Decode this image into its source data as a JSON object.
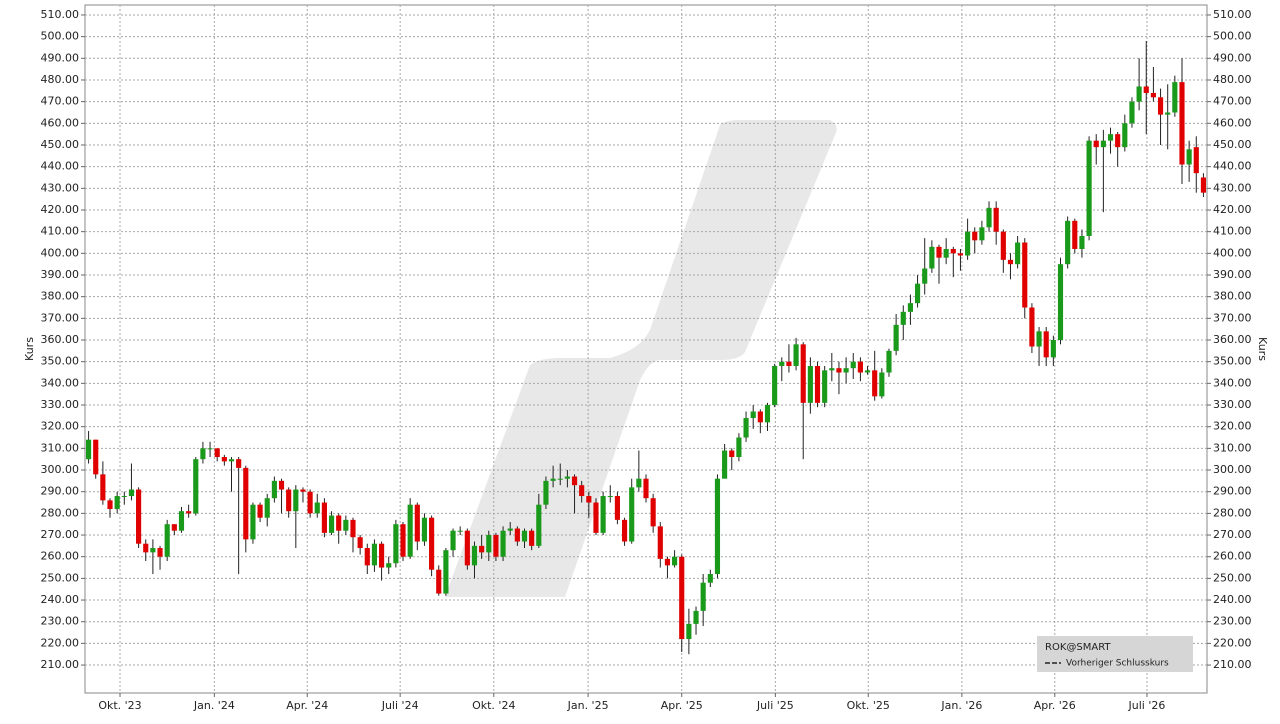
{
  "chart_data": {
    "type": "candlestick",
    "y_label": "Kurs",
    "legend": {
      "symbol": "ROK@SMART",
      "previous_close": "Vorheriger Schlusskurs",
      "corner": "lower-right"
    },
    "up_color": "#1a9a1a",
    "down_color": "#e00000",
    "grid": true,
    "xlim": [
      -0.5,
      156.5
    ],
    "xticks": [
      {
        "value": 4.4,
        "label": "Okt. '23"
      },
      {
        "value": 17.6,
        "label": "Jan. '24"
      },
      {
        "value": 30.6,
        "label": "Apr. '24"
      },
      {
        "value": 43.6,
        "label": "Juli '24"
      },
      {
        "value": 56.7,
        "label": "Okt. '24"
      },
      {
        "value": 69.9,
        "label": "Jan. '25"
      },
      {
        "value": 83.0,
        "label": "Apr. '25"
      },
      {
        "value": 96.1,
        "label": "Juli '25"
      },
      {
        "value": 109.1,
        "label": "Okt. '25"
      },
      {
        "value": 122.2,
        "label": "Jan. '26"
      },
      {
        "value": 135.2,
        "label": "Apr. '26"
      },
      {
        "value": 148.1,
        "label": "Juli '26"
      }
    ],
    "ylim": [
      197.1,
      514.6
    ],
    "yticks": [
      {
        "value": 210,
        "label": "210.00"
      },
      {
        "value": 220,
        "label": "220.00"
      },
      {
        "value": 230,
        "label": "230.00"
      },
      {
        "value": 240,
        "label": "240.00"
      },
      {
        "value": 250,
        "label": "250.00"
      },
      {
        "value": 260,
        "label": "260.00"
      },
      {
        "value": 270,
        "label": "270.00"
      },
      {
        "value": 280,
        "label": "280.00"
      },
      {
        "value": 290,
        "label": "290.00"
      },
      {
        "value": 300,
        "label": "300.00"
      },
      {
        "value": 310,
        "label": "310.00"
      },
      {
        "value": 320,
        "label": "320.00"
      },
      {
        "value": 330,
        "label": "330.00"
      },
      {
        "value": 340,
        "label": "340.00"
      },
      {
        "value": 350,
        "label": "350.00"
      },
      {
        "value": 360,
        "label": "360.00"
      },
      {
        "value": 370,
        "label": "370.00"
      },
      {
        "value": 380,
        "label": "380.00"
      },
      {
        "value": 390,
        "label": "390.00"
      },
      {
        "value": 400,
        "label": "400.00"
      },
      {
        "value": 410,
        "label": "410.00"
      },
      {
        "value": 420,
        "label": "420.00"
      },
      {
        "value": 430,
        "label": "430.00"
      },
      {
        "value": 440,
        "label": "440.00"
      },
      {
        "value": 450,
        "label": "450.00"
      },
      {
        "value": 460,
        "label": "460.00"
      },
      {
        "value": 470,
        "label": "470.00"
      },
      {
        "value": 480,
        "label": "480.00"
      },
      {
        "value": 490,
        "label": "490.00"
      },
      {
        "value": 500,
        "label": "500.00"
      },
      {
        "value": 510,
        "label": "510.00"
      }
    ],
    "open": [
      305,
      314,
      298,
      286,
      282,
      288,
      288,
      291,
      266,
      262,
      264,
      260,
      275,
      272,
      281,
      280,
      305,
      310,
      310,
      306,
      304,
      305,
      301,
      268,
      284,
      278,
      287,
      295,
      291,
      281,
      291,
      290,
      280,
      285,
      271,
      279,
      272,
      277,
      269,
      264,
      256,
      266,
      255,
      257,
      275,
      260,
      284,
      267,
      278,
      254,
      243,
      263,
      272,
      272,
      256,
      265,
      262,
      270,
      260,
      272,
      273,
      267,
      272,
      265,
      284,
      295,
      296,
      296,
      297,
      293,
      288,
      285,
      271,
      288,
      288,
      277,
      267,
      292,
      296,
      287,
      274,
      259,
      256,
      260,
      222,
      229,
      235,
      248,
      252,
      296,
      309,
      306,
      315,
      324,
      327,
      322,
      330,
      348,
      350,
      348,
      358,
      331,
      348,
      331,
      346,
      347,
      345,
      347,
      350,
      345,
      346,
      334,
      345,
      355,
      367,
      373,
      377,
      386,
      393,
      403,
      398,
      402,
      400,
      399,
      410,
      406,
      412,
      421,
      410,
      397,
      395,
      405,
      375,
      357,
      364,
      352,
      360,
      395,
      415,
      402,
      408,
      452,
      449,
      452,
      455,
      449,
      460,
      470,
      477,
      474,
      472,
      464,
      465,
      479,
      441,
      449,
      435
    ],
    "high": [
      318,
      314,
      304,
      287,
      290,
      290,
      303,
      292,
      268,
      268,
      265,
      277,
      275,
      283,
      284,
      306,
      313,
      313,
      310,
      307,
      306,
      306,
      302,
      285,
      285,
      289,
      297,
      296,
      292,
      293,
      292,
      291,
      289,
      287,
      281,
      280,
      279,
      278,
      270,
      266,
      268,
      267,
      260,
      277,
      276,
      287,
      285,
      280,
      279,
      256,
      264,
      273,
      274,
      273,
      267,
      270,
      272,
      271,
      274,
      276,
      274,
      273,
      273,
      289,
      297,
      302,
      303,
      300,
      298,
      295,
      290,
      287,
      290,
      293,
      290,
      278,
      296,
      309,
      298,
      289,
      276,
      260,
      263,
      261,
      236,
      237,
      252,
      254,
      298,
      312,
      310,
      317,
      327,
      330,
      328,
      331,
      349,
      352,
      358,
      361,
      359,
      352,
      350,
      348,
      354,
      350,
      352,
      354,
      352,
      348,
      355,
      347,
      356,
      372,
      376,
      381,
      390,
      407,
      406,
      404,
      407,
      403,
      402,
      416,
      412,
      415,
      424,
      424,
      411,
      400,
      408,
      407,
      377,
      366,
      366,
      362,
      398,
      417,
      416,
      411,
      454,
      455,
      457,
      458,
      456,
      464,
      472,
      490,
      498,
      486,
      476,
      478,
      482,
      490,
      452,
      454,
      437
    ],
    "low": [
      303,
      296,
      284,
      278,
      280,
      284,
      286,
      264,
      258,
      252,
      254,
      258,
      270,
      271,
      278,
      279,
      303,
      306,
      304,
      302,
      290,
      252,
      262,
      266,
      276,
      274,
      285,
      280,
      278,
      264,
      285,
      278,
      278,
      269,
      270,
      266,
      270,
      262,
      261,
      252,
      253,
      249,
      252,
      255,
      258,
      259,
      263,
      265,
      251,
      242,
      242,
      260,
      270,
      254,
      250,
      259,
      258,
      258,
      258,
      270,
      265,
      264,
      263,
      264,
      282,
      292,
      293,
      292,
      280,
      285,
      278,
      270,
      270,
      285,
      275,
      265,
      266,
      290,
      285,
      271,
      255,
      250,
      255,
      216,
      215,
      224,
      228,
      246,
      250,
      298,
      300,
      304,
      313,
      319,
      317,
      318,
      329,
      341,
      345,
      346,
      305,
      326,
      329,
      329,
      341,
      335,
      340,
      342,
      341,
      344,
      332,
      333,
      343,
      353,
      360,
      367,
      375,
      381,
      391,
      386,
      395,
      389,
      392,
      397,
      400,
      404,
      410,
      404,
      391,
      388,
      393,
      370,
      354,
      348,
      348,
      348,
      358,
      393,
      400,
      398,
      406,
      441,
      419,
      446,
      440,
      447,
      458,
      466,
      455,
      470,
      450,
      448,
      463,
      432,
      433,
      428,
      426
    ],
    "close": [
      314,
      298,
      286,
      282,
      288,
      288,
      291,
      266,
      262,
      264,
      260,
      275,
      272,
      281,
      280,
      305,
      310,
      310,
      306,
      304,
      305,
      301,
      268,
      284,
      278,
      287,
      295,
      291,
      281,
      291,
      290,
      280,
      285,
      271,
      279,
      272,
      277,
      269,
      264,
      256,
      266,
      255,
      257,
      275,
      260,
      284,
      267,
      278,
      254,
      243,
      263,
      272,
      272,
      256,
      265,
      262,
      270,
      260,
      272,
      273,
      267,
      272,
      265,
      284,
      295,
      296,
      296,
      297,
      293,
      288,
      285,
      271,
      288,
      288,
      277,
      267,
      292,
      296,
      287,
      274,
      259,
      256,
      260,
      222,
      229,
      235,
      248,
      252,
      296,
      309,
      306,
      315,
      324,
      327,
      322,
      330,
      348,
      350,
      348,
      358,
      331,
      348,
      331,
      346,
      347,
      345,
      347,
      350,
      345,
      346,
      334,
      345,
      355,
      367,
      373,
      377,
      386,
      393,
      403,
      398,
      402,
      400,
      399,
      410,
      406,
      412,
      421,
      410,
      397,
      395,
      405,
      375,
      357,
      364,
      352,
      360,
      395,
      415,
      402,
      408,
      452,
      449,
      452,
      455,
      449,
      460,
      470,
      477,
      474,
      472,
      464,
      465,
      479,
      441,
      448,
      437,
      428
    ]
  }
}
